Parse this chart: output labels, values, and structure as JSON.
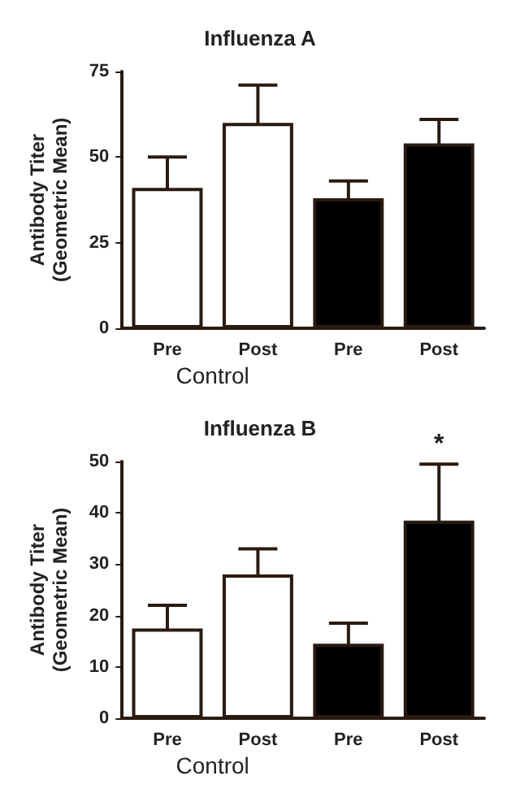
{
  "chart_data": [
    {
      "type": "bar",
      "title": "Influenza A",
      "ylabel": "Antibody Titer\n(Geometric Mean)",
      "categories": [
        "Pre",
        "Post",
        "Pre",
        "Post"
      ],
      "values": [
        41,
        60,
        38,
        54
      ],
      "colors": [
        "#ffffff",
        "#ffffff",
        "#000000",
        "#000000"
      ],
      "errors": [
        9,
        11,
        5,
        7
      ],
      "ylim": [
        0,
        75
      ],
      "yticks": [
        0,
        25,
        50,
        75
      ],
      "grid": false,
      "annotations": [
        "Control"
      ]
    },
    {
      "type": "bar",
      "title": "Influenza B",
      "ylabel": "Antibody Titer\n(Geometric Mean)",
      "categories": [
        "Pre",
        "Post",
        "Pre",
        "Post"
      ],
      "values": [
        17.5,
        28,
        14.5,
        38.5
      ],
      "colors": [
        "#ffffff",
        "#ffffff",
        "#000000",
        "#000000"
      ],
      "errors": [
        4.5,
        5,
        4,
        11
      ],
      "ylim": [
        0,
        50
      ],
      "yticks": [
        0,
        10,
        20,
        30,
        40,
        50
      ],
      "grid": false,
      "annotations": [
        "Control",
        "*"
      ]
    }
  ]
}
